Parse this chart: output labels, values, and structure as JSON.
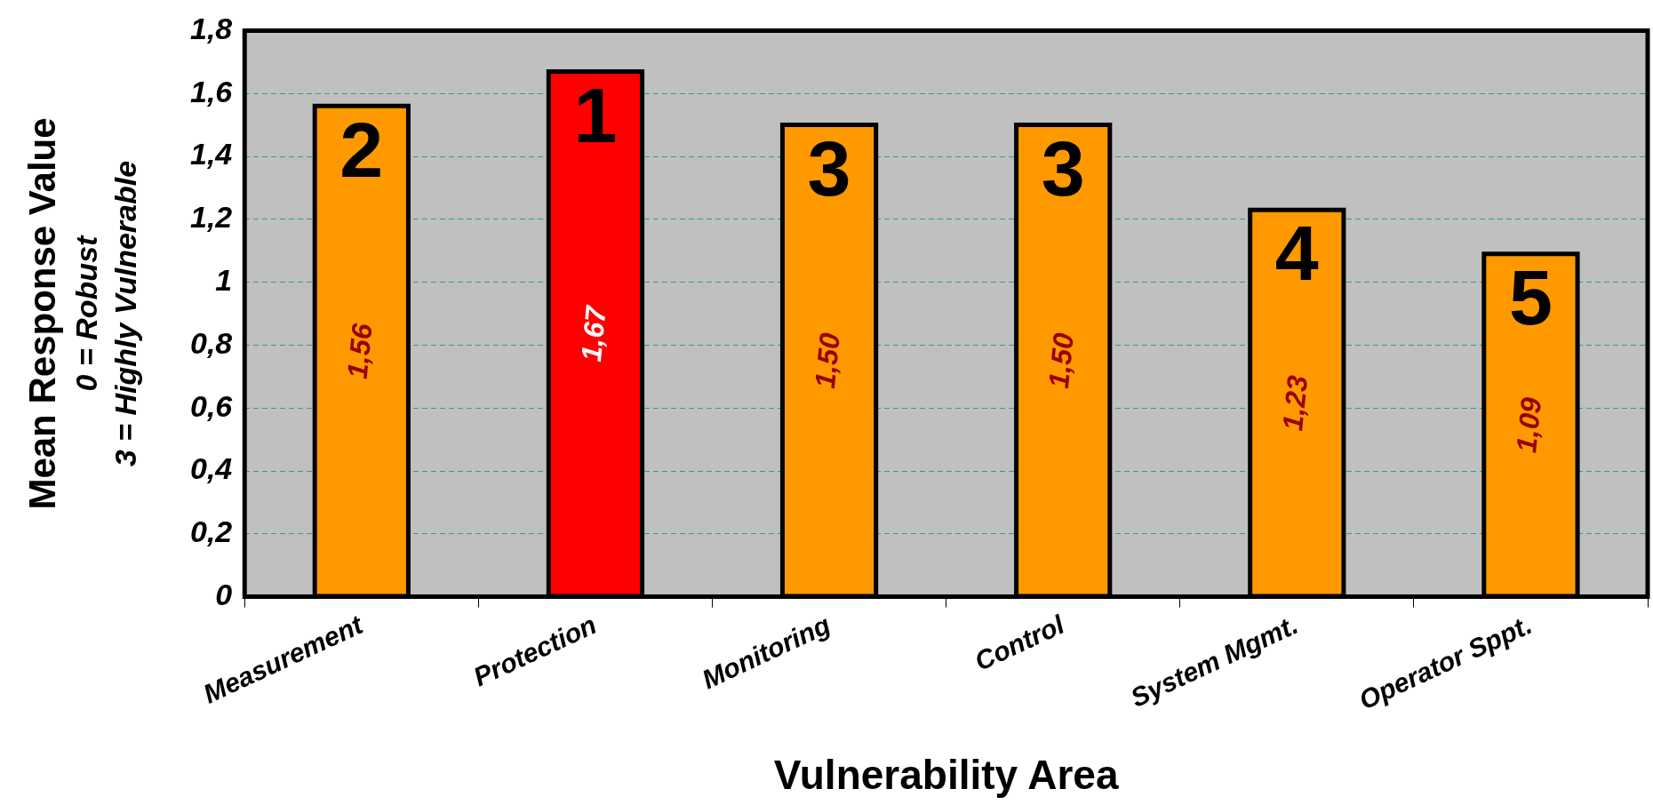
{
  "chart_data": {
    "type": "bar",
    "categories": [
      "Measurement",
      "Protection",
      "Monitoring",
      "Control",
      "System Mgmt.",
      "Operator Sppt."
    ],
    "values": [
      1.56,
      1.67,
      1.5,
      1.5,
      1.23,
      1.09
    ],
    "colors": [
      "#ff9900",
      "#ff0000",
      "#ff9900",
      "#ff9900",
      "#ff9900",
      "#ff9900"
    ],
    "value_labels": [
      "1,56",
      "1,67",
      "1,50",
      "1,50",
      "1,23",
      "1,09"
    ],
    "ylim": [
      0,
      1.8
    ],
    "yticks": [
      0,
      {
        "value": 0.2,
        "label": "0,2"
      },
      {
        "value": 0.4,
        "label": "0,4"
      },
      {
        "value": 0.6,
        "label": "0,6"
      },
      {
        "value": 0.8,
        "label": "0,8"
      },
      1,
      {
        "value": 1.2,
        "label": "1,2"
      },
      {
        "value": 1.4,
        "label": "1,4"
      },
      {
        "value": 1.6,
        "label": "1,6"
      },
      {
        "value": 1.8,
        "label": "1,8"
      }
    ],
    "grid": "y",
    "legend": false,
    "ylabel": "Mean Response Value\n0 = Robust\n3 = Highly Vulnerable",
    "xlabel": "Vulnerability Area",
    "annotations": [
      {
        "text": "2",
        "x": "Measurement",
        "y": 1.56
      },
      {
        "text": "1",
        "x": "Protection",
        "y": 1.67
      },
      {
        "text": "3",
        "x": "Monitoring",
        "y": 1.5
      },
      {
        "text": "3",
        "x": "Control",
        "y": 1.5
      },
      {
        "text": "4",
        "x": "System Mgmt.",
        "y": 1.23
      },
      {
        "text": "5",
        "x": "Operator Sppt.",
        "y": 1.09
      }
    ]
  }
}
